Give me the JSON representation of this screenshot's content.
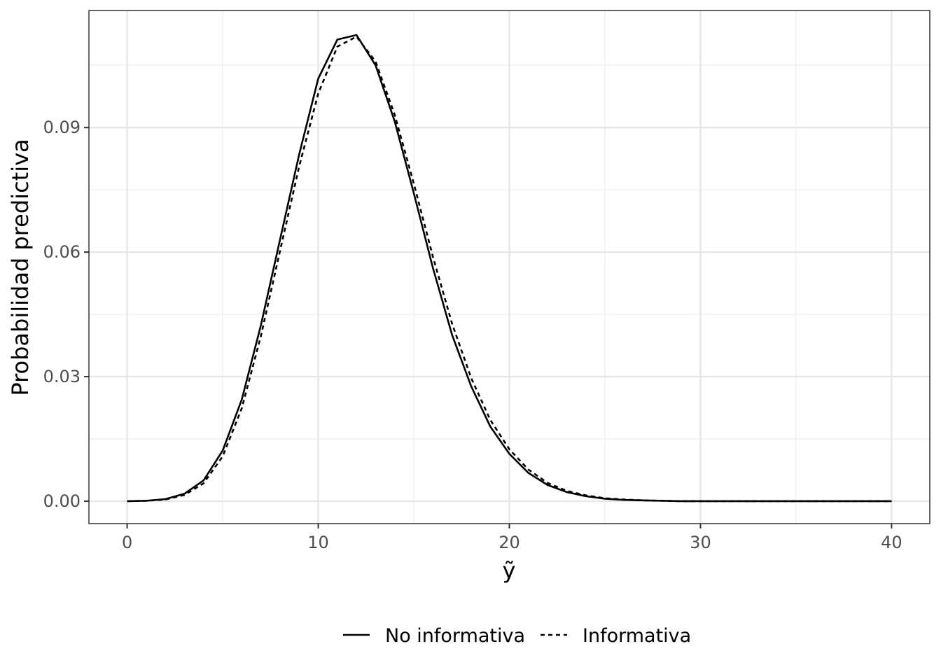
{
  "chart_data": {
    "type": "line",
    "xlabel": "ỹ",
    "ylabel": "Probabilidad predictiva",
    "xlim": [
      -2,
      42
    ],
    "ylim": [
      -0.0054,
      0.1182
    ],
    "x_ticks": [
      0,
      10,
      20,
      30,
      40
    ],
    "x_tick_labels": [
      "0",
      "10",
      "20",
      "30",
      "40"
    ],
    "y_ticks": [
      0.0,
      0.03,
      0.06,
      0.09
    ],
    "y_tick_labels": [
      "0.00",
      "0.03",
      "0.06",
      "0.09"
    ],
    "grid": true,
    "legend_position": "bottom",
    "x": [
      0,
      1,
      2,
      3,
      4,
      5,
      6,
      7,
      8,
      9,
      10,
      11,
      12,
      13,
      14,
      15,
      16,
      17,
      18,
      19,
      20,
      21,
      22,
      23,
      24,
      25,
      26,
      27,
      28,
      29,
      30,
      31,
      32,
      33,
      34,
      35,
      36,
      37,
      38,
      39,
      40
    ],
    "series": [
      {
        "name": "No informativa",
        "line_style": "solid",
        "color": "#000000",
        "values": [
          0.0,
          0.0001,
          0.0005,
          0.0018,
          0.005,
          0.0122,
          0.0245,
          0.0424,
          0.063,
          0.0835,
          0.1018,
          0.1112,
          0.1123,
          0.105,
          0.0915,
          0.0742,
          0.0562,
          0.0401,
          0.0277,
          0.018,
          0.0114,
          0.0068,
          0.0039,
          0.0022,
          0.0012,
          0.0006,
          0.0003,
          0.0002,
          0.0001,
          0.0,
          0.0,
          0.0,
          0.0,
          0.0,
          0.0,
          0.0,
          0.0,
          0.0,
          0.0,
          0.0,
          0.0
        ]
      },
      {
        "name": "Informativa",
        "line_style": "dashed",
        "color": "#000000",
        "values": [
          0.0,
          0.0001,
          0.0004,
          0.0015,
          0.0043,
          0.0108,
          0.0224,
          0.0398,
          0.0603,
          0.0806,
          0.0982,
          0.1095,
          0.1119,
          0.1059,
          0.0931,
          0.0765,
          0.0589,
          0.0428,
          0.0297,
          0.0196,
          0.0125,
          0.0076,
          0.0044,
          0.0025,
          0.0014,
          0.0007,
          0.0004,
          0.0002,
          0.0001,
          0.0,
          0.0,
          0.0,
          0.0,
          0.0,
          0.0,
          0.0,
          0.0,
          0.0,
          0.0,
          0.0,
          0.0
        ]
      }
    ]
  }
}
